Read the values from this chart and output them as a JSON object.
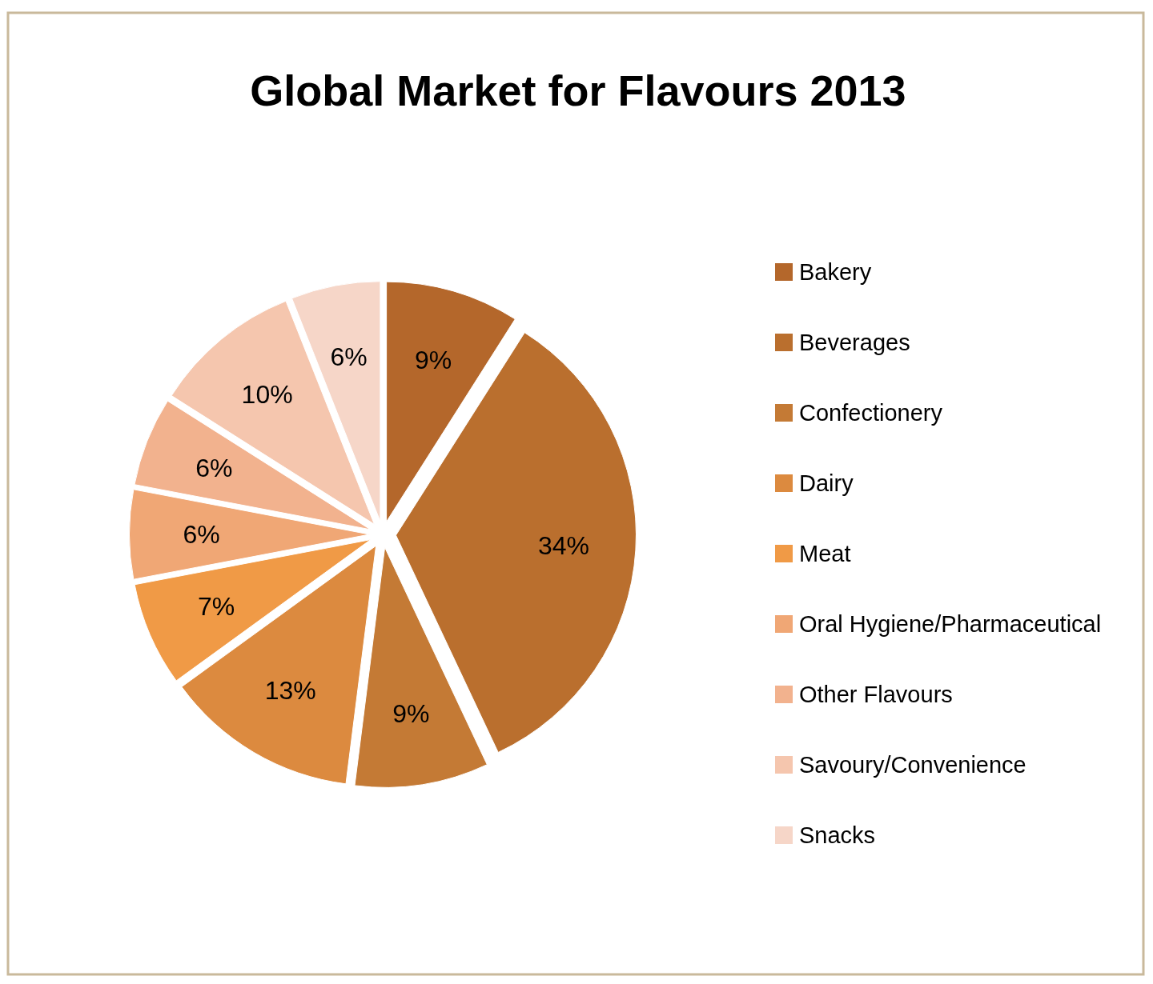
{
  "chart_data": {
    "type": "pie",
    "title": "Global Market for Flavours 2013",
    "categories": [
      "Bakery",
      "Beverages",
      "Confectionery",
      "Dairy",
      "Meat",
      "Oral Hygiene/Pharmaceutical",
      "Other Flavours",
      "Savoury/Convenience",
      "Snacks"
    ],
    "values": [
      9,
      34,
      9,
      13,
      7,
      6,
      6,
      10,
      6
    ],
    "value_labels": [
      "9%",
      "34%",
      "9%",
      "13%",
      "7%",
      "6%",
      "6%",
      "10%",
      "6%"
    ],
    "colors": [
      "#b4672b",
      "#ba6f2e",
      "#c47a35",
      "#dc8a3f",
      "#f09a46",
      "#f0a775",
      "#f2b28e",
      "#f5c6ae",
      "#f6d6c8"
    ],
    "legend": "right"
  }
}
